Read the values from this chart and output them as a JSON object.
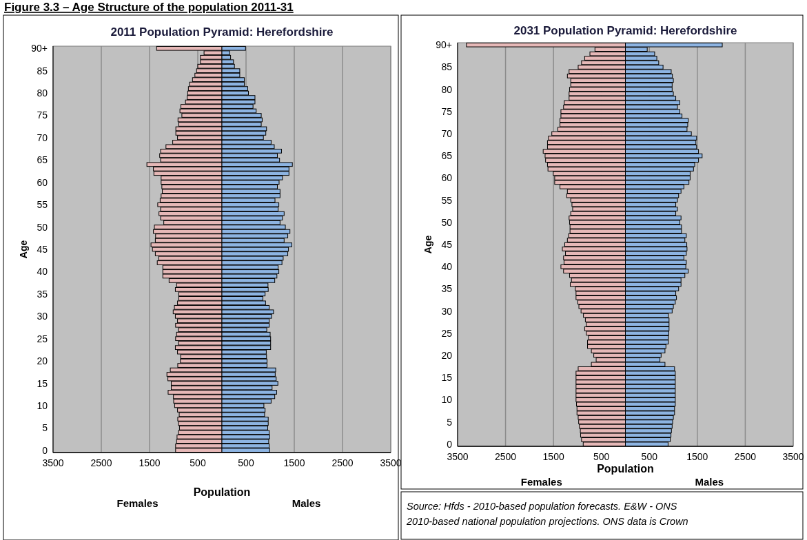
{
  "chart_data": [
    {
      "type": "bar",
      "orientation": "horizontal",
      "stacked": true,
      "title": "2011 Population Pyramid: Herefordshire",
      "xlabel": "Population",
      "ylabel": "Age",
      "grid": "x",
      "annotations": [
        "Figure 3.3 – Age Structure of the population 2011-31",
        "Females",
        "Males"
      ],
      "xlim": [
        -3500,
        3500
      ],
      "xticks": [
        {
          "value": -3500,
          "label": "3500"
        },
        {
          "value": -2500,
          "label": "2500"
        },
        {
          "value": -1500,
          "label": "1500"
        },
        {
          "value": -500,
          "label": "500"
        },
        500,
        1500,
        2500,
        3500
      ],
      "categories": [
        "90+",
        null,
        null,
        null,
        null,
        "85",
        null,
        null,
        null,
        null,
        "80",
        null,
        null,
        null,
        null,
        "75",
        null,
        null,
        null,
        null,
        "70",
        null,
        null,
        null,
        null,
        "65",
        null,
        null,
        null,
        null,
        "60",
        null,
        null,
        null,
        null,
        "55",
        null,
        null,
        null,
        null,
        "50",
        null,
        null,
        null,
        null,
        "45",
        null,
        null,
        null,
        null,
        "40",
        null,
        null,
        null,
        null,
        "35",
        null,
        null,
        null,
        null,
        "30",
        null,
        null,
        null,
        null,
        "25",
        null,
        null,
        null,
        null,
        "20",
        null,
        null,
        null,
        null,
        "15",
        null,
        null,
        null,
        null,
        "10",
        null,
        null,
        null,
        null,
        "5",
        null,
        null,
        null,
        null,
        "0"
      ],
      "series": [
        {
          "color": "#e6b8b7",
          "values": [
            -1354,
            -370,
            -445,
            -445,
            -500,
            -525,
            -560,
            -610,
            -670,
            -695,
            -710,
            -720,
            -755,
            -850,
            -870,
            -830,
            -910,
            -895,
            -955,
            -955,
            -920,
            -1020,
            -1160,
            -1270,
            -1290,
            -1270,
            -1555,
            -1420,
            -1410,
            -1260,
            -1260,
            -1245,
            -1235,
            -1260,
            -1280,
            -1330,
            -1270,
            -1305,
            -1270,
            -1205,
            -1400,
            -1420,
            -1375,
            -1380,
            -1470,
            -1440,
            -1380,
            -1310,
            -1340,
            -1225,
            -1225,
            -1225,
            -1095,
            -940,
            -965,
            -895,
            -895,
            -920,
            -985,
            -1010,
            -965,
            -920,
            -960,
            -900,
            -940,
            -960,
            -900,
            -965,
            -920,
            -855,
            -860,
            -915,
            -1070,
            -1140,
            -1120,
            -1050,
            -1050,
            -1115,
            -1005,
            -1000,
            -980,
            -920,
            -885,
            -915,
            -900,
            -880,
            -900,
            -930,
            -940,
            -960,
            -960
          ]
        },
        {
          "color": "#8db4e2",
          "values": [
            490,
            160,
            180,
            240,
            260,
            370,
            370,
            465,
            465,
            535,
            550,
            685,
            685,
            645,
            710,
            815,
            835,
            815,
            925,
            910,
            860,
            1020,
            1085,
            1235,
            1150,
            1195,
            1460,
            1390,
            1390,
            1255,
            1185,
            1150,
            1205,
            1205,
            1100,
            1180,
            1165,
            1290,
            1255,
            1205,
            1315,
            1410,
            1365,
            1290,
            1450,
            1380,
            1365,
            1270,
            1245,
            1165,
            1180,
            1140,
            1095,
            955,
            960,
            895,
            850,
            905,
            980,
            1070,
            1030,
            980,
            980,
            930,
            1000,
            1010,
            1010,
            1010,
            920,
            925,
            935,
            935,
            1115,
            1105,
            1125,
            1160,
            1040,
            1135,
            1095,
            1020,
            870,
            895,
            885,
            960,
            960,
            950,
            980,
            990,
            970,
            980,
            990
          ]
        }
      ]
    },
    {
      "type": "bar",
      "orientation": "horizontal",
      "stacked": true,
      "title": "2031 Population Pyramid: Herefordshire",
      "xlabel": "Population",
      "ylabel": "Age",
      "grid": "x",
      "annotations": [
        "Source: Hfds - 2010-based population forecasts. E&W - ONS 2010-based national population projections. ONS data is Crown",
        "Females",
        "Males"
      ],
      "xlim": [
        -3500,
        3500
      ],
      "xticks": [
        {
          "value": -3500,
          "label": "3500"
        },
        {
          "value": -2500,
          "label": "2500"
        },
        {
          "value": -1500,
          "label": "1500"
        },
        {
          "value": -500,
          "label": "500"
        },
        500,
        1500,
        2500,
        3500
      ],
      "categories": [
        "90+",
        null,
        null,
        null,
        null,
        "85",
        null,
        null,
        null,
        null,
        "80",
        null,
        null,
        null,
        null,
        "75",
        null,
        null,
        null,
        null,
        "70",
        null,
        null,
        null,
        null,
        "65",
        null,
        null,
        null,
        null,
        "60",
        null,
        null,
        null,
        null,
        "55",
        null,
        null,
        null,
        null,
        "50",
        null,
        null,
        null,
        null,
        "45",
        null,
        null,
        null,
        null,
        "40",
        null,
        null,
        null,
        null,
        "35",
        null,
        null,
        null,
        null,
        "30",
        null,
        null,
        null,
        null,
        "25",
        null,
        null,
        null,
        null,
        "20",
        null,
        null,
        null,
        null,
        "15",
        null,
        null,
        null,
        null,
        "10",
        null,
        null,
        null,
        null,
        "5",
        null,
        null,
        null,
        null,
        "0"
      ],
      "series": [
        {
          "color": "#e6b8b7",
          "values": [
            -3315,
            -635,
            -740,
            -850,
            -915,
            -985,
            -1175,
            -1210,
            -1140,
            -1140,
            -1165,
            -1175,
            -1175,
            -1275,
            -1290,
            -1345,
            -1345,
            -1365,
            -1365,
            -1410,
            -1535,
            -1605,
            -1625,
            -1625,
            -1715,
            -1675,
            -1665,
            -1625,
            -1615,
            -1505,
            -1475,
            -1475,
            -1365,
            -1210,
            -1225,
            -1140,
            -1115,
            -1100,
            -1140,
            -1175,
            -1165,
            -1155,
            -1155,
            -1185,
            -1210,
            -1265,
            -1315,
            -1250,
            -1290,
            -1280,
            -1345,
            -1290,
            -1165,
            -1125,
            -1150,
            -1045,
            -1030,
            -1030,
            -995,
            -970,
            -925,
            -875,
            -835,
            -815,
            -850,
            -815,
            -770,
            -790,
            -790,
            -710,
            -660,
            -610,
            -710,
            -985,
            -1030,
            -1030,
            -1030,
            -1030,
            -1030,
            -1030,
            -1030,
            -1020,
            -1010,
            -1010,
            -985,
            -975,
            -960,
            -940,
            -935,
            -915,
            -880
          ]
        },
        {
          "color": "#8db4e2",
          "values": [
            2020,
            455,
            610,
            655,
            695,
            785,
            955,
            980,
            1000,
            975,
            975,
            1000,
            1050,
            1135,
            1085,
            1135,
            1180,
            1310,
            1300,
            1285,
            1375,
            1485,
            1470,
            1485,
            1525,
            1600,
            1525,
            1445,
            1420,
            1350,
            1350,
            1325,
            1220,
            1160,
            1110,
            1085,
            1050,
            1085,
            1050,
            1160,
            1135,
            1170,
            1170,
            1270,
            1240,
            1280,
            1285,
            1270,
            1220,
            1270,
            1260,
            1310,
            1240,
            1160,
            1160,
            1110,
            1050,
            1065,
            1040,
            1000,
            975,
            895,
            910,
            910,
            910,
            905,
            895,
            895,
            845,
            825,
            745,
            720,
            825,
            1025,
            1040,
            1040,
            1040,
            1040,
            1040,
            1040,
            1040,
            1040,
            1025,
            1025,
            1000,
            985,
            975,
            960,
            950,
            935,
            890
          ]
        }
      ]
    }
  ]
}
